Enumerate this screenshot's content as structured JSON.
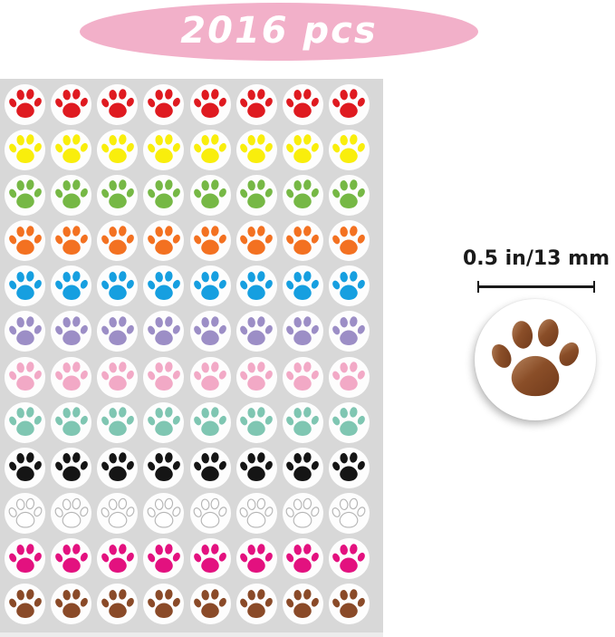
{
  "badge": {
    "label": "2016 pcs",
    "bg": "#f2b0c9",
    "text_color": "#ffffff"
  },
  "size_annotation": {
    "label": "0.5 in/13 mm",
    "color": "#1a1a1a"
  },
  "sheet": {
    "columns": 8,
    "rows": 12,
    "sheet_bg": "#d8d8d8",
    "sticker_bg": "#fdfdfd",
    "row_colors": [
      {
        "name": "red",
        "hex": "#df1a20"
      },
      {
        "name": "yellow",
        "hex": "#f9ee0c"
      },
      {
        "name": "green",
        "hex": "#76b845"
      },
      {
        "name": "orange",
        "hex": "#f37121"
      },
      {
        "name": "blue",
        "hex": "#169fe0"
      },
      {
        "name": "purple",
        "hex": "#9c8ec6"
      },
      {
        "name": "pink",
        "hex": "#f2a9c6"
      },
      {
        "name": "teal",
        "hex": "#7fc6b2"
      },
      {
        "name": "black",
        "hex": "#151515"
      },
      {
        "name": "white",
        "hex": "#ffffff",
        "outline": "#b5b5b5"
      },
      {
        "name": "magenta",
        "hex": "#e3117f"
      },
      {
        "name": "brown",
        "hex": "#8a4a28"
      }
    ]
  },
  "big_sticker": {
    "bg": "#ffffff",
    "paw_color": "#8a4e28",
    "paw_highlight": "#b5825c",
    "paw_shadow": "#713a1b"
  }
}
